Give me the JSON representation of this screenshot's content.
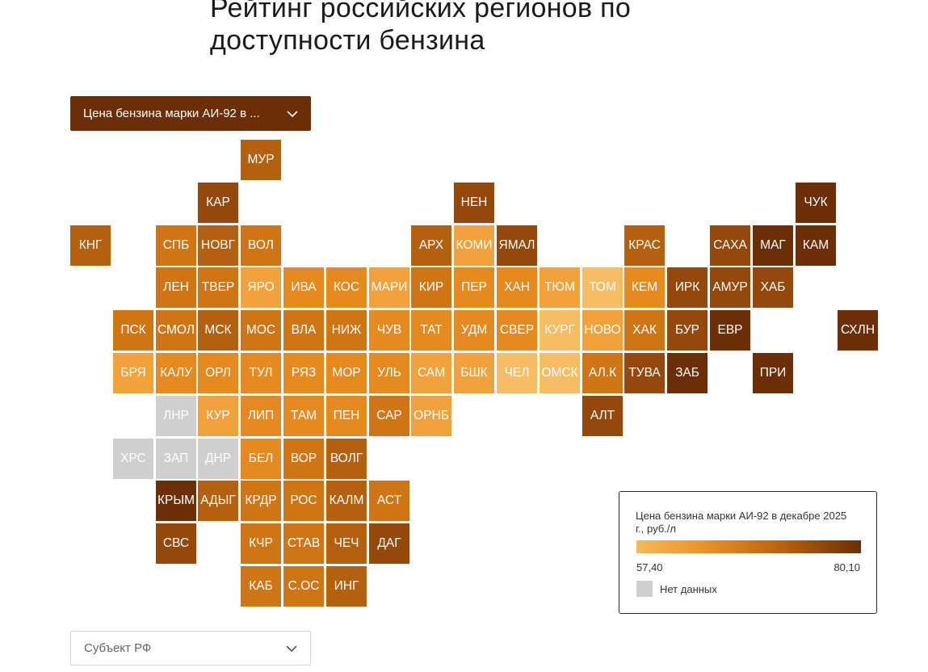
{
  "title": {
    "line1": "Рейтинг российских регионов по",
    "line2": "доступности бензина"
  },
  "metric_dropdown": {
    "label": "Цена бензина марки АИ-92 в ..."
  },
  "subject_dropdown": {
    "placeholder": "Субъект РФ"
  },
  "legend": {
    "title": "Цена бензина марки АИ-92 в декабре 2025 г., руб./л",
    "min": "57,40",
    "max": "80,10",
    "no_data": "Нет данных",
    "colors": [
      "#f6b95a",
      "#e8932b",
      "#b8620f",
      "#6b2e07"
    ],
    "no_data_color": "#cfcfcf"
  },
  "tile_colors": [
    "#f7bd64",
    "#f2a23c",
    "#e48a1f",
    "#ce7616",
    "#b3600f",
    "#94480b",
    "#6b2e07"
  ],
  "tiles": [
    {
      "label": "МУР",
      "row": 0,
      "col": 4,
      "shade": 4
    },
    {
      "label": "КАР",
      "row": 1,
      "col": 3,
      "shade": 5
    },
    {
      "label": "НЕН",
      "row": 1,
      "col": 9,
      "shade": 5
    },
    {
      "label": "ЧУК",
      "row": 1,
      "col": 17,
      "shade": 6
    },
    {
      "label": "КНГ",
      "row": 2,
      "col": 0,
      "shade": 4
    },
    {
      "label": "СПБ",
      "row": 2,
      "col": 2,
      "shade": 3
    },
    {
      "label": "НОВГ",
      "row": 2,
      "col": 3,
      "shade": 4
    },
    {
      "label": "ВОЛ",
      "row": 2,
      "col": 4,
      "shade": 3
    },
    {
      "label": "АРХ",
      "row": 2,
      "col": 8,
      "shade": 4
    },
    {
      "label": "КОМИ",
      "row": 2,
      "col": 9,
      "shade": 1
    },
    {
      "label": "ЯМАЛ",
      "row": 2,
      "col": 10,
      "shade": 5
    },
    {
      "label": "КРАС",
      "row": 2,
      "col": 13,
      "shade": 4
    },
    {
      "label": "САХА",
      "row": 2,
      "col": 15,
      "shade": 5
    },
    {
      "label": "МАГ",
      "row": 2,
      "col": 16,
      "shade": 6
    },
    {
      "label": "КАМ",
      "row": 2,
      "col": 17,
      "shade": 6
    },
    {
      "label": "ЛЕН",
      "row": 3,
      "col": 2,
      "shade": 3
    },
    {
      "label": "ТВЕР",
      "row": 3,
      "col": 3,
      "shade": 3
    },
    {
      "label": "ЯРО",
      "row": 3,
      "col": 4,
      "shade": 1
    },
    {
      "label": "ИВА",
      "row": 3,
      "col": 5,
      "shade": 2
    },
    {
      "label": "КОС",
      "row": 3,
      "col": 6,
      "shade": 2
    },
    {
      "label": "МАРИ",
      "row": 3,
      "col": 7,
      "shade": 1
    },
    {
      "label": "КИР",
      "row": 3,
      "col": 8,
      "shade": 3
    },
    {
      "label": "ПЕР",
      "row": 3,
      "col": 9,
      "shade": 2
    },
    {
      "label": "ХАН",
      "row": 3,
      "col": 10,
      "shade": 2
    },
    {
      "label": "ТЮМ",
      "row": 3,
      "col": 11,
      "shade": 1
    },
    {
      "label": "ТОМ",
      "row": 3,
      "col": 12,
      "shade": 0
    },
    {
      "label": "КЕМ",
      "row": 3,
      "col": 13,
      "shade": 2
    },
    {
      "label": "ИРК",
      "row": 3,
      "col": 14,
      "shade": 5
    },
    {
      "label": "АМУР",
      "row": 3,
      "col": 15,
      "shade": 5
    },
    {
      "label": "ХАБ",
      "row": 3,
      "col": 16,
      "shade": 5
    },
    {
      "label": "ПСК",
      "row": 4,
      "col": 1,
      "shade": 3
    },
    {
      "label": "СМОЛ",
      "row": 4,
      "col": 2,
      "shade": 3
    },
    {
      "label": "МСК",
      "row": 4,
      "col": 3,
      "shade": 4
    },
    {
      "label": "МОС",
      "row": 4,
      "col": 4,
      "shade": 3
    },
    {
      "label": "ВЛА",
      "row": 4,
      "col": 5,
      "shade": 3
    },
    {
      "label": "НИЖ",
      "row": 4,
      "col": 6,
      "shade": 3
    },
    {
      "label": "ЧУВ",
      "row": 4,
      "col": 7,
      "shade": 2
    },
    {
      "label": "ТАТ",
      "row": 4,
      "col": 8,
      "shade": 2
    },
    {
      "label": "УДМ",
      "row": 4,
      "col": 9,
      "shade": 2
    },
    {
      "label": "СВЕР",
      "row": 4,
      "col": 10,
      "shade": 2
    },
    {
      "label": "КУРГ",
      "row": 4,
      "col": 11,
      "shade": 0
    },
    {
      "label": "НОВО",
      "row": 4,
      "col": 12,
      "shade": 1
    },
    {
      "label": "ХАК",
      "row": 4,
      "col": 13,
      "shade": 3
    },
    {
      "label": "БУР",
      "row": 4,
      "col": 14,
      "shade": 5
    },
    {
      "label": "ЕВР",
      "row": 4,
      "col": 15,
      "shade": 6
    },
    {
      "label": "СХЛН",
      "row": 4,
      "col": 18,
      "shade": 6
    },
    {
      "label": "БРЯ",
      "row": 5,
      "col": 1,
      "shade": 1
    },
    {
      "label": "КАЛУ",
      "row": 5,
      "col": 2,
      "shade": 2
    },
    {
      "label": "ОРЛ",
      "row": 5,
      "col": 3,
      "shade": 2
    },
    {
      "label": "ТУЛ",
      "row": 5,
      "col": 4,
      "shade": 2
    },
    {
      "label": "РЯЗ",
      "row": 5,
      "col": 5,
      "shade": 2
    },
    {
      "label": "МОР",
      "row": 5,
      "col": 6,
      "shade": 2
    },
    {
      "label": "УЛЬ",
      "row": 5,
      "col": 7,
      "shade": 2
    },
    {
      "label": "САМ",
      "row": 5,
      "col": 8,
      "shade": 1
    },
    {
      "label": "БШК",
      "row": 5,
      "col": 9,
      "shade": 1
    },
    {
      "label": "ЧЕЛ",
      "row": 5,
      "col": 10,
      "shade": 0
    },
    {
      "label": "ОМСК",
      "row": 5,
      "col": 11,
      "shade": 0
    },
    {
      "label": "АЛ.К",
      "row": 5,
      "col": 12,
      "shade": 3
    },
    {
      "label": "ТУВА",
      "row": 5,
      "col": 13,
      "shade": 5
    },
    {
      "label": "ЗАБ",
      "row": 5,
      "col": 14,
      "shade": 6
    },
    {
      "label": "ПРИ",
      "row": 5,
      "col": 16,
      "shade": 6
    },
    {
      "label": "ЛНР",
      "row": 6,
      "col": 2,
      "shade": -1
    },
    {
      "label": "КУР",
      "row": 6,
      "col": 3,
      "shade": 1
    },
    {
      "label": "ЛИП",
      "row": 6,
      "col": 4,
      "shade": 2
    },
    {
      "label": "ТАМ",
      "row": 6,
      "col": 5,
      "shade": 2
    },
    {
      "label": "ПЕН",
      "row": 6,
      "col": 6,
      "shade": 2
    },
    {
      "label": "САР",
      "row": 6,
      "col": 7,
      "shade": 3
    },
    {
      "label": "ОРНБ",
      "row": 6,
      "col": 8,
      "shade": 1
    },
    {
      "label": "АЛТ",
      "row": 6,
      "col": 12,
      "shade": 5
    },
    {
      "label": "ХРС",
      "row": 7,
      "col": 1,
      "shade": -1
    },
    {
      "label": "ЗАП",
      "row": 7,
      "col": 2,
      "shade": -1
    },
    {
      "label": "ДНР",
      "row": 7,
      "col": 3,
      "shade": -1
    },
    {
      "label": "БЕЛ",
      "row": 7,
      "col": 4,
      "shade": 2
    },
    {
      "label": "ВОР",
      "row": 7,
      "col": 5,
      "shade": 3
    },
    {
      "label": "ВОЛГ",
      "row": 7,
      "col": 6,
      "shade": 4
    },
    {
      "label": "КРЫМ",
      "row": 8,
      "col": 2,
      "shade": 6
    },
    {
      "label": "АДЫГ",
      "row": 8,
      "col": 3,
      "shade": 4
    },
    {
      "label": "КРДР",
      "row": 8,
      "col": 4,
      "shade": 3
    },
    {
      "label": "РОС",
      "row": 8,
      "col": 5,
      "shade": 3
    },
    {
      "label": "КАЛМ",
      "row": 8,
      "col": 6,
      "shade": 4
    },
    {
      "label": "АСТ",
      "row": 8,
      "col": 7,
      "shade": 3
    },
    {
      "label": "СВС",
      "row": 9,
      "col": 2,
      "shade": 5
    },
    {
      "label": "КЧР",
      "row": 9,
      "col": 4,
      "shade": 3
    },
    {
      "label": "СТАВ",
      "row": 9,
      "col": 5,
      "shade": 3
    },
    {
      "label": "ЧЕЧ",
      "row": 9,
      "col": 6,
      "shade": 4
    },
    {
      "label": "ДАГ",
      "row": 9,
      "col": 7,
      "shade": 5
    },
    {
      "label": "КАБ",
      "row": 10,
      "col": 4,
      "shade": 3
    },
    {
      "label": "С.ОС",
      "row": 10,
      "col": 5,
      "shade": 3
    },
    {
      "label": "ИНГ",
      "row": 10,
      "col": 6,
      "shade": 4
    }
  ]
}
